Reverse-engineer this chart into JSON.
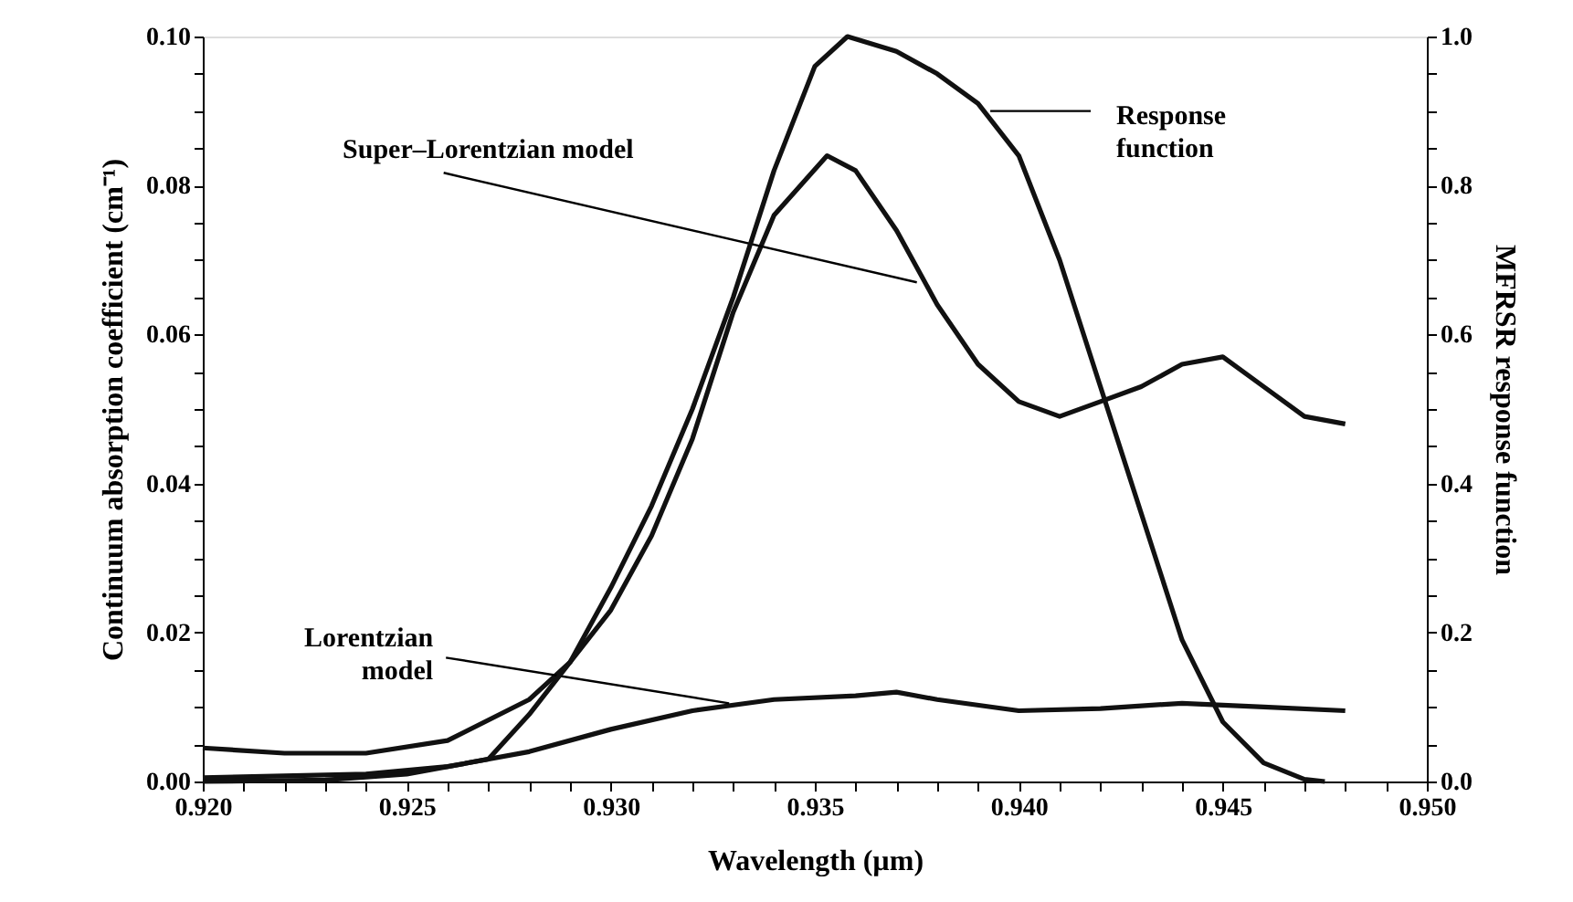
{
  "chart_data": {
    "type": "line",
    "xlabel": "Wavelength (µm)",
    "ylabel": "Continuum absorption coefficient (cm⁻¹)",
    "y2label": "MFRSR response function",
    "xlim": [
      0.92,
      0.95
    ],
    "xticks": [
      {
        "value": 0.92,
        "label": "0.920"
      },
      {
        "value": 0.921,
        "label": null
      },
      {
        "value": 0.922,
        "label": null
      },
      {
        "value": 0.923,
        "label": null
      },
      {
        "value": 0.924,
        "label": null
      },
      {
        "value": 0.925,
        "label": "0.925"
      },
      {
        "value": 0.926,
        "label": null
      },
      {
        "value": 0.927,
        "label": null
      },
      {
        "value": 0.928,
        "label": null
      },
      {
        "value": 0.929,
        "label": null
      },
      {
        "value": 0.93,
        "label": "0.930"
      },
      {
        "value": 0.931,
        "label": null
      },
      {
        "value": 0.932,
        "label": null
      },
      {
        "value": 0.933,
        "label": null
      },
      {
        "value": 0.934,
        "label": null
      },
      {
        "value": 0.935,
        "label": "0.935"
      },
      {
        "value": 0.936,
        "label": null
      },
      {
        "value": 0.937,
        "label": null
      },
      {
        "value": 0.938,
        "label": null
      },
      {
        "value": 0.939,
        "label": null
      },
      {
        "value": 0.94,
        "label": "0.940"
      },
      {
        "value": 0.941,
        "label": null
      },
      {
        "value": 0.942,
        "label": null
      },
      {
        "value": 0.943,
        "label": null
      },
      {
        "value": 0.944,
        "label": null
      },
      {
        "value": 0.945,
        "label": "0.945"
      },
      {
        "value": 0.946,
        "label": null
      },
      {
        "value": 0.947,
        "label": null
      },
      {
        "value": 0.948,
        "label": null
      },
      {
        "value": 0.949,
        "label": null
      },
      {
        "value": 0.95,
        "label": "0.950"
      }
    ],
    "ylim": [
      0,
      0.1
    ],
    "yticks": [
      {
        "value": 0,
        "label": "0.00"
      },
      {
        "value": 0.005,
        "label": null
      },
      {
        "value": 0.01,
        "label": null
      },
      {
        "value": 0.015,
        "label": null
      },
      {
        "value": 0.02,
        "label": "0.02"
      },
      {
        "value": 0.025,
        "label": null
      },
      {
        "value": 0.03,
        "label": null
      },
      {
        "value": 0.035,
        "label": null
      },
      {
        "value": 0.04,
        "label": "0.04"
      },
      {
        "value": 0.045,
        "label": null
      },
      {
        "value": 0.05,
        "label": null
      },
      {
        "value": 0.055,
        "label": null
      },
      {
        "value": 0.06,
        "label": "0.06"
      },
      {
        "value": 0.065,
        "label": null
      },
      {
        "value": 0.07,
        "label": null
      },
      {
        "value": 0.075,
        "label": null
      },
      {
        "value": 0.08,
        "label": "0.08"
      },
      {
        "value": 0.085,
        "label": null
      },
      {
        "value": 0.09,
        "label": null
      },
      {
        "value": 0.095,
        "label": null
      },
      {
        "value": 0.1,
        "label": "0.10"
      }
    ],
    "y2lim": [
      0,
      1
    ],
    "y2ticks": [
      {
        "value": 0,
        "label": "0.0"
      },
      {
        "value": 0.05,
        "label": null
      },
      {
        "value": 0.1,
        "label": null
      },
      {
        "value": 0.15,
        "label": null
      },
      {
        "value": 0.2,
        "label": "0.2"
      },
      {
        "value": 0.25,
        "label": null
      },
      {
        "value": 0.3,
        "label": null
      },
      {
        "value": 0.35,
        "label": null
      },
      {
        "value": 0.4,
        "label": "0.4"
      },
      {
        "value": 0.45,
        "label": null
      },
      {
        "value": 0.5,
        "label": null
      },
      {
        "value": 0.55,
        "label": null
      },
      {
        "value": 0.6,
        "label": "0.6"
      },
      {
        "value": 0.65,
        "label": null
      },
      {
        "value": 0.7,
        "label": null
      },
      {
        "value": 0.75,
        "label": null
      },
      {
        "value": 0.8,
        "label": "0.8"
      },
      {
        "value": 0.85,
        "label": null
      },
      {
        "value": 0.9,
        "label": null
      },
      {
        "value": 0.95,
        "label": null
      },
      {
        "value": 1.0,
        "label": "1.0"
      }
    ],
    "grid": false,
    "marker": "none",
    "line_style": "solid",
    "series": [
      {
        "color": "#111111",
        "x": [
          0.92,
          0.922,
          0.924,
          0.926,
          0.928,
          0.929,
          0.93,
          0.931,
          0.932,
          0.933,
          0.934,
          0.9353,
          0.936,
          0.937,
          0.938,
          0.939,
          0.94,
          0.941,
          0.942,
          0.943,
          0.944,
          0.945,
          0.946,
          0.947,
          0.948
        ],
        "values": [
          0.0045,
          0.0038,
          0.0038,
          0.0055,
          0.011,
          0.016,
          0.023,
          0.033,
          0.046,
          0.063,
          0.076,
          0.084,
          0.082,
          0.074,
          0.064,
          0.056,
          0.051,
          0.049,
          0.051,
          0.053,
          0.056,
          0.057,
          0.053,
          0.049,
          0.048
        ]
      },
      {
        "color": "#111111",
        "x": [
          0.92,
          0.924,
          0.926,
          0.928,
          0.93,
          0.932,
          0.934,
          0.936,
          0.937,
          0.938,
          0.94,
          0.942,
          0.944,
          0.946,
          0.948
        ],
        "values": [
          0.0005,
          0.001,
          0.002,
          0.004,
          0.007,
          0.0095,
          0.011,
          0.0115,
          0.012,
          0.011,
          0.0095,
          0.0098,
          0.0105,
          0.01,
          0.0095
        ]
      },
      {
        "color": "#111111",
        "axis": "y2",
        "x": [
          0.92,
          0.923,
          0.925,
          0.927,
          0.928,
          0.929,
          0.93,
          0.931,
          0.932,
          0.933,
          0.934,
          0.935,
          0.9358,
          0.937,
          0.938,
          0.939,
          0.94,
          0.941,
          0.942,
          0.943,
          0.944,
          0.945,
          0.946,
          0.947,
          0.9475
        ],
        "values": [
          0.0,
          0.002,
          0.01,
          0.03,
          0.09,
          0.16,
          0.26,
          0.37,
          0.5,
          0.65,
          0.82,
          0.96,
          1.0,
          0.98,
          0.95,
          0.91,
          0.84,
          0.7,
          0.53,
          0.36,
          0.19,
          0.08,
          0.025,
          0.003,
          0.0
        ]
      }
    ],
    "annotations": [
      {
        "text": "Super–Lorentzian model",
        "x": 0.9375,
        "y": 0.067
      },
      {
        "text": "Lorentzian model",
        "x": 0.9329,
        "y": 0.0105
      },
      {
        "text": "Response function",
        "x": 0.9393,
        "y": 0.09
      }
    ]
  }
}
